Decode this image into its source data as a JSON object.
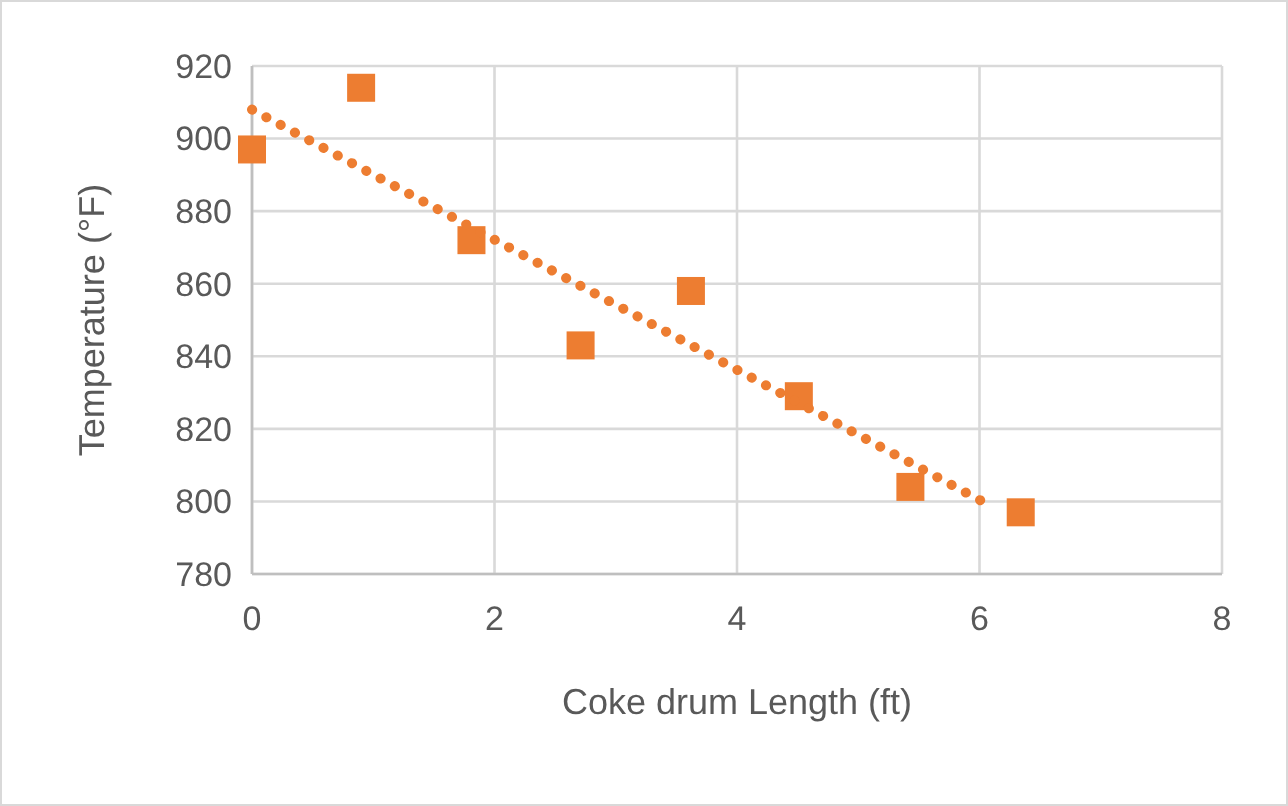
{
  "chart_data": {
    "type": "scatter",
    "xlabel": "Coke drum Length (ft)",
    "ylabel": "Temperature (°F)",
    "xlim": [
      0,
      8
    ],
    "xticks": [
      0,
      2,
      4,
      6,
      8
    ],
    "ylim": [
      780,
      920
    ],
    "yticks": [
      780,
      800,
      820,
      840,
      860,
      880,
      900,
      920
    ],
    "grid": true,
    "series": [
      {
        "color": "#ed7d31",
        "marker": "square",
        "x": [
          0,
          0.9,
          1.81,
          2.71,
          3.62,
          4.51,
          5.43,
          6.34
        ],
        "values": [
          897,
          914,
          872,
          843,
          858,
          829,
          804,
          797
        ]
      },
      {
        "type": "line",
        "color": "#ed7d31",
        "line_style": "dotted",
        "marker": "none",
        "x": [
          0,
          6.08
        ],
        "values": [
          908,
          799
        ]
      }
    ]
  }
}
